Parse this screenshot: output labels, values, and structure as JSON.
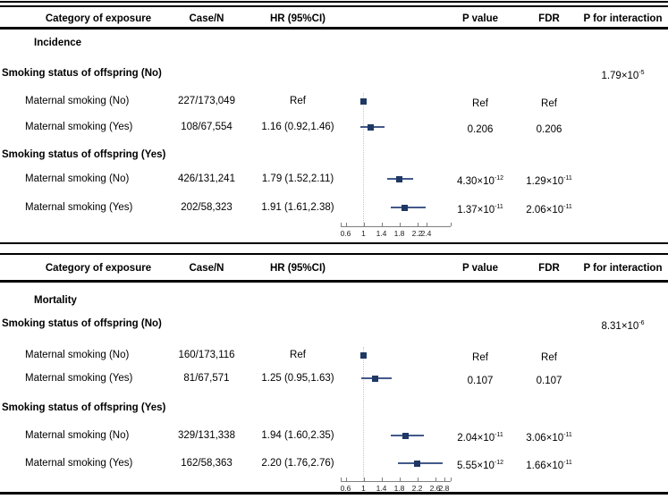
{
  "colors": {
    "marker": "#1f3864",
    "ci_line": "#44598a",
    "ref_line": "#c6c6c6",
    "axis": "#7f7f7f",
    "rule": "#000000"
  },
  "columns": {
    "category": "Category of exposure",
    "case_n": "Case/N",
    "hr": "HR (95%CI)",
    "p_value": "P value",
    "fdr": "FDR",
    "p_interaction": "P for interaction"
  },
  "panels": [
    {
      "section": "Incidence",
      "groups": [
        {
          "label": "Smoking status of offspring (No)",
          "p_interaction": "1.79×10",
          "p_interaction_exp": "-5",
          "rows": [
            {
              "label": "Maternal smoking (No)",
              "case_n": "227/173,049",
              "hr_text": "Ref",
              "p": "Ref",
              "p_exp": "",
              "fdr": "Ref",
              "fdr_exp": ""
            },
            {
              "label": "Maternal smoking (Yes)",
              "case_n": "108/67,554",
              "hr_text": "1.16 (0.92,1.46)",
              "p": "0.206",
              "p_exp": "",
              "fdr": "0.206",
              "fdr_exp": ""
            }
          ]
        },
        {
          "label": "Smoking status of offspring (Yes)",
          "p_interaction": "",
          "p_interaction_exp": "",
          "rows": [
            {
              "label": "Maternal smoking (No)",
              "case_n": "426/131,241",
              "hr_text": "1.79 (1.52,2.11)",
              "p": "4.30×10",
              "p_exp": "-12",
              "fdr": "1.29×10",
              "fdr_exp": "-11"
            },
            {
              "label": "Maternal smoking (Yes)",
              "case_n": "202/58,323",
              "hr_text": "1.91 (1.61,2.38)",
              "p": "1.37×10",
              "p_exp": "-11",
              "fdr": "2.06×10",
              "fdr_exp": "-11"
            }
          ]
        }
      ]
    },
    {
      "section": "Mortality",
      "groups": [
        {
          "label": "Smoking status of offspring (No)",
          "p_interaction": "8.31×10",
          "p_interaction_exp": "-6",
          "rows": [
            {
              "label": "Maternal smoking (No)",
              "case_n": "160/173,116",
              "hr_text": "Ref",
              "p": "Ref",
              "p_exp": "",
              "fdr": "Ref",
              "fdr_exp": ""
            },
            {
              "label": "Maternal smoking (Yes)",
              "case_n": "81/67,571",
              "hr_text": "1.25 (0.95,1.63)",
              "p": "0.107",
              "p_exp": "",
              "fdr": "0.107",
              "fdr_exp": ""
            }
          ]
        },
        {
          "label": "Smoking status of offspring (Yes)",
          "p_interaction": "",
          "p_interaction_exp": "",
          "rows": [
            {
              "label": "Maternal smoking (No)",
              "case_n": "329/131,338",
              "hr_text": "1.94 (1.60,2.35)",
              "p": "2.04×10",
              "p_exp": "-11",
              "fdr": "3.06×10",
              "fdr_exp": "-11"
            },
            {
              "label": "Maternal smoking (Yes)",
              "case_n": "162/58,363",
              "hr_text": "2.20 (1.76,2.76)",
              "p": "5.55×10",
              "p_exp": "-12",
              "fdr": "1.66×10",
              "fdr_exp": "-11"
            }
          ]
        }
      ]
    }
  ],
  "chart_data": [
    {
      "type": "forest",
      "title": "Incidence",
      "xlabel": "HR (95%CI)",
      "ref_line": 1,
      "x_ticks": [
        0.6,
        1,
        1.4,
        1.8,
        2.2,
        2.4
      ],
      "points": [
        {
          "label": "Offspring smoking (No) / Maternal smoking (No)",
          "hr": 1.0,
          "ci": null,
          "note": "Ref"
        },
        {
          "label": "Offspring smoking (No) / Maternal smoking (Yes)",
          "hr": 1.16,
          "ci": [
            0.92,
            1.46
          ]
        },
        {
          "label": "Offspring smoking (Yes) / Maternal smoking (No)",
          "hr": 1.79,
          "ci": [
            1.52,
            2.11
          ]
        },
        {
          "label": "Offspring smoking (Yes) / Maternal smoking (Yes)",
          "hr": 1.91,
          "ci": [
            1.61,
            2.38
          ]
        }
      ]
    },
    {
      "type": "forest",
      "title": "Mortality",
      "xlabel": "HR (95%CI)",
      "ref_line": 1,
      "x_ticks": [
        0.6,
        1,
        1.4,
        1.8,
        2.2,
        2.6,
        2.8
      ],
      "points": [
        {
          "label": "Offspring smoking (No) / Maternal smoking (No)",
          "hr": 1.0,
          "ci": null,
          "note": "Ref"
        },
        {
          "label": "Offspring smoking (No) / Maternal smoking (Yes)",
          "hr": 1.25,
          "ci": [
            0.95,
            1.63
          ]
        },
        {
          "label": "Offspring smoking (Yes) / Maternal smoking (No)",
          "hr": 1.94,
          "ci": [
            1.6,
            2.35
          ]
        },
        {
          "label": "Offspring smoking (Yes) / Maternal smoking (Yes)",
          "hr": 2.2,
          "ci": [
            1.76,
            2.76
          ]
        }
      ]
    }
  ]
}
